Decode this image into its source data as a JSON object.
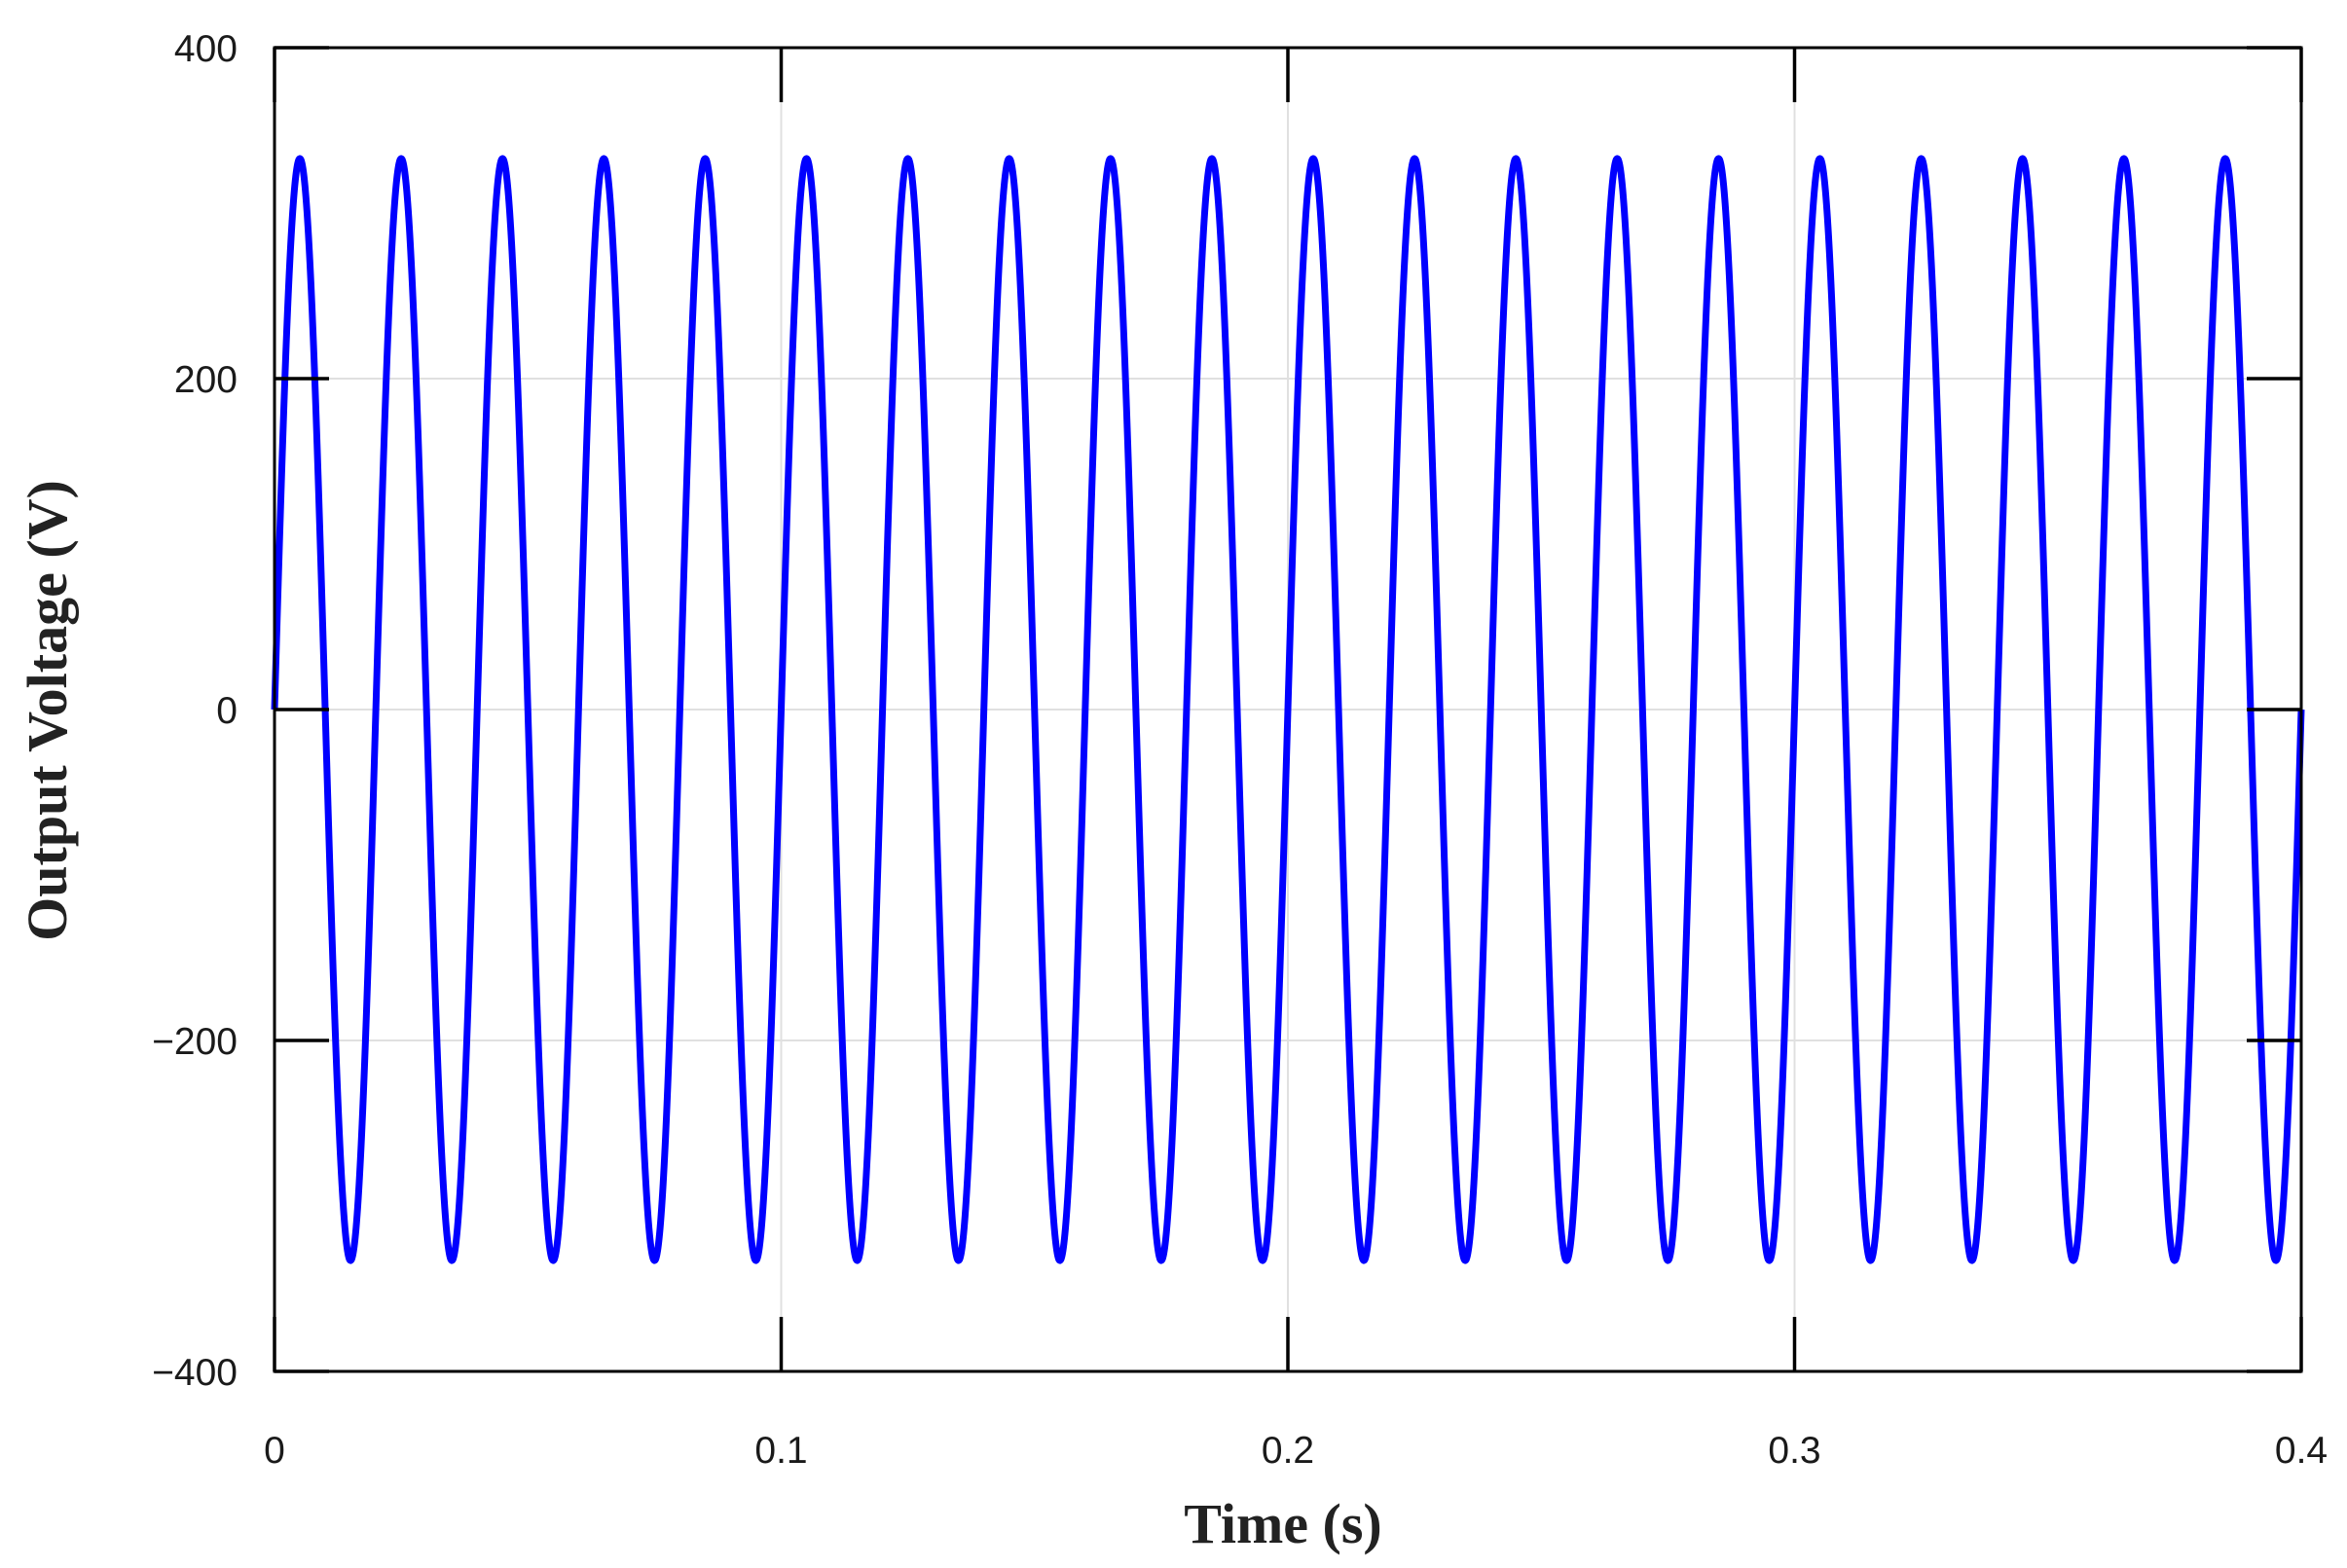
{
  "chart_data": {
    "type": "line",
    "title": "",
    "xlabel": "Time (s)",
    "ylabel": "Output Voltage (V)",
    "xlim": [
      0,
      0.4
    ],
    "ylim": [
      -400,
      400
    ],
    "xticks": [
      0,
      0.1,
      0.2,
      0.3,
      0.4
    ],
    "xtick_labels": [
      "0",
      "0.1",
      "0.2",
      "0.3",
      "0.4"
    ],
    "yticks": [
      400,
      200,
      0,
      -200,
      -400
    ],
    "ytick_labels": [
      "400",
      "200",
      "0",
      "−200",
      "−400"
    ],
    "grid": true,
    "legend": "none",
    "series": [
      {
        "color": "#0000ff",
        "waveform": "sine",
        "amplitude": 333,
        "frequency_hz": 50,
        "x_start": 0,
        "x_end": 0.4,
        "samples": 4001
      }
    ]
  },
  "colors": {
    "line": "#0000ff",
    "axis": "#000000",
    "grid": "#e0e0e0"
  }
}
